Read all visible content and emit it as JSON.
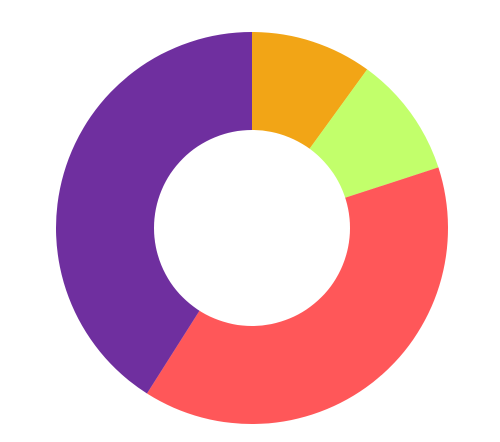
{
  "chart_data": {
    "type": "pie",
    "style": "donut",
    "slices": [
      {
        "value": 10,
        "color": "#F2A516"
      },
      {
        "value": 10,
        "color": "#C2FF6B"
      },
      {
        "value": 39,
        "color": "#FF5759"
      },
      {
        "value": 41,
        "color": "#6F2F9F"
      }
    ],
    "start_angle_deg": 0,
    "direction": "clockwise",
    "legend": "none"
  }
}
